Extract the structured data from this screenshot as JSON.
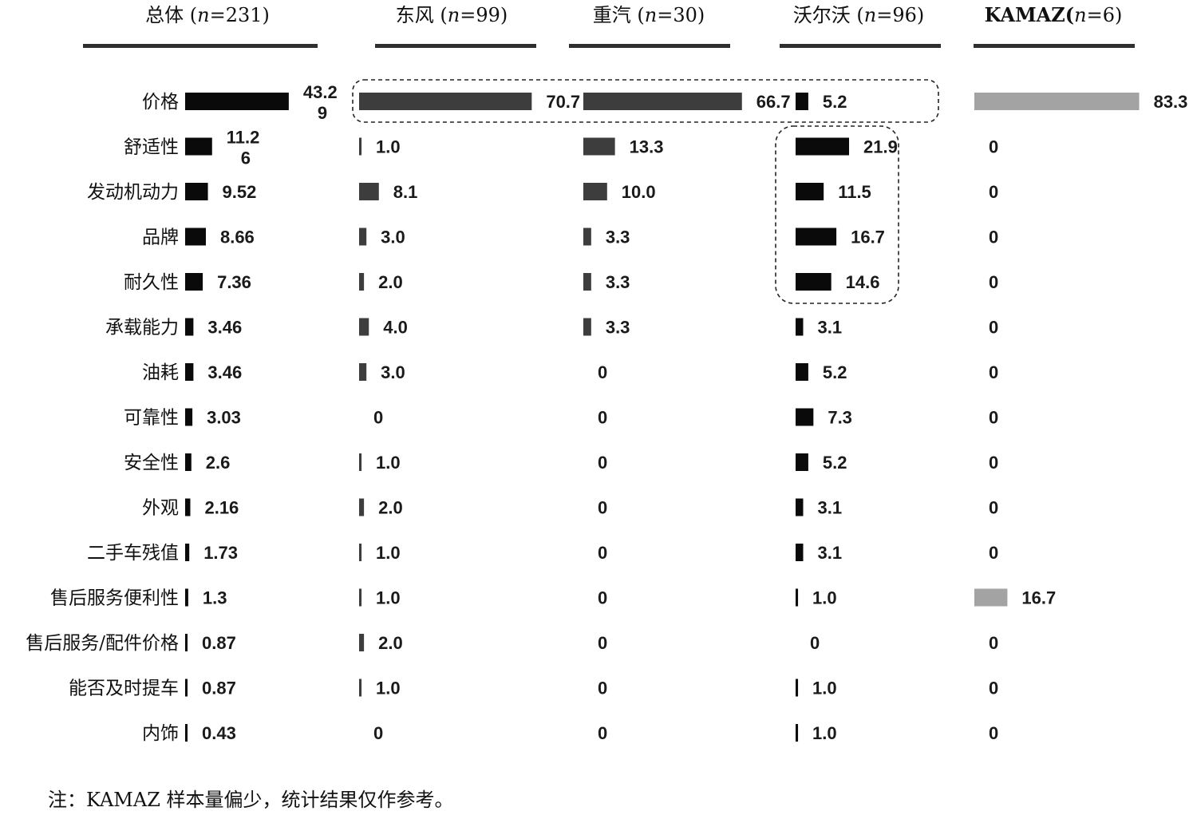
{
  "chart_data": {
    "type": "bar",
    "categories": [
      "价格",
      "舒适性",
      "发动机动力",
      "品牌",
      "耐久性",
      "承载能力",
      "油耗",
      "可靠性",
      "安全性",
      "外观",
      "二手车残值",
      "售后服务便利性",
      "售后服务/配件价格",
      "能否及时提车",
      "内饰"
    ],
    "series": [
      {
        "name_parts": [
          "总体 (",
          "n",
          "=231)"
        ],
        "values": [
          43.29,
          11.26,
          9.52,
          8.66,
          7.36,
          3.46,
          3.46,
          3.03,
          2.6,
          2.16,
          1.73,
          1.3,
          0.87,
          0.87,
          0.43
        ],
        "labels": [
          [
            "43.2",
            "9"
          ],
          [
            "11.2",
            "6"
          ],
          "9.52",
          "8.66",
          "7.36",
          "3.46",
          "3.46",
          "3.03",
          "2.6",
          "2.16",
          "1.73",
          "1.3",
          "0.87",
          "0.87",
          "0.43"
        ],
        "color": "#0a0a0a"
      },
      {
        "name_parts": [
          "东风 (",
          "n",
          "=99)"
        ],
        "values": [
          70.7,
          1.0,
          8.1,
          3.0,
          2.0,
          4.0,
          3.0,
          0,
          1.0,
          2.0,
          1.0,
          1.0,
          2.0,
          1.0,
          0
        ],
        "labels": [
          "70.7",
          "1.0",
          "8.1",
          "3.0",
          "2.0",
          "4.0",
          "3.0",
          "0",
          "1.0",
          "2.0",
          "1.0",
          "1.0",
          "2.0",
          "1.0",
          "0"
        ],
        "color": "#3d3d3d"
      },
      {
        "name_parts": [
          "重汽 (",
          "n",
          "=30)"
        ],
        "values": [
          66.7,
          13.3,
          10.0,
          3.3,
          3.3,
          3.3,
          0,
          0,
          0,
          0,
          0,
          0,
          0,
          0,
          0
        ],
        "labels": [
          "66.7",
          "13.3",
          "10.0",
          "3.3",
          "3.3",
          "3.3",
          "0",
          "0",
          "0",
          "0",
          "0",
          "0",
          "0",
          "0",
          "0"
        ],
        "color": "#3d3d3d"
      },
      {
        "name_parts": [
          "沃尔沃 (",
          "n",
          "=96)"
        ],
        "values": [
          5.2,
          21.9,
          11.5,
          16.7,
          14.6,
          3.1,
          5.2,
          7.3,
          5.2,
          3.1,
          3.1,
          1.0,
          0,
          1.0,
          1.0
        ],
        "labels": [
          "5.2",
          "21.9",
          "11.5",
          "16.7",
          "14.6",
          "3.1",
          "5.2",
          "7.3",
          "5.2",
          "3.1",
          "3.1",
          "1.0",
          "0",
          "1.0",
          "1.0"
        ],
        "color": "#0a0a0a"
      },
      {
        "name_parts": [
          "KAMAZ(",
          "n",
          "=6)"
        ],
        "values": [
          83.3,
          0,
          0,
          0,
          0,
          0,
          0,
          0,
          0,
          0,
          0,
          16.7,
          0,
          0,
          0
        ],
        "labels": [
          "83.3",
          "0",
          "0",
          "0",
          "0",
          "0",
          "0",
          "0",
          "0",
          "0",
          "0",
          "16.7",
          "0",
          "0",
          "0"
        ],
        "color": "#a3a3a3"
      }
    ],
    "note": "注：KAMAZ 样本量偏少，统计结果仅作参考。",
    "highlights": [
      {
        "series": [
          1,
          2,
          3
        ],
        "categories": [
          0
        ]
      },
      {
        "series": [
          3
        ],
        "categories": [
          1,
          2,
          3,
          4
        ]
      }
    ]
  }
}
